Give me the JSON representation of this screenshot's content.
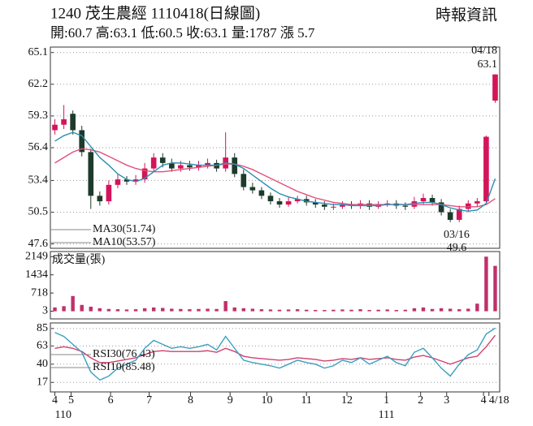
{
  "chart_data": [
    {
      "type": "candlestick",
      "title": "1240  茂生農經 1110418(日線圖)",
      "source": "時報資訊",
      "subtitle": "開:60.7 高:63.1 低:60.5 收:63.1 量:1787 漲 5.7",
      "x": [
        0,
        1,
        2,
        3,
        4,
        5,
        6,
        7,
        8,
        9,
        10,
        11,
        12,
        13,
        14,
        15,
        16,
        17,
        18,
        19,
        20,
        21,
        22,
        23,
        24,
        25,
        26,
        27,
        28,
        29,
        30,
        31,
        32,
        33,
        34,
        35,
        36,
        37,
        38,
        39,
        40,
        41,
        42,
        43,
        44,
        45,
        46,
        47,
        48,
        49
      ],
      "open": [
        58.0,
        58.5,
        59.5,
        58,
        56,
        52,
        51.5,
        53,
        53.5,
        53.3,
        53.5,
        54.5,
        55.5,
        55,
        54.5,
        54.8,
        54.6,
        54.8,
        55,
        54.5,
        55.5,
        54,
        52.8,
        52.5,
        52,
        51.5,
        51.2,
        51.5,
        51.7,
        51.4,
        51.2,
        51,
        51,
        51.2,
        51.1,
        51.3,
        51,
        51.2,
        51.3,
        51.1,
        51,
        51.5,
        51.8,
        51.4,
        50.5,
        49.8,
        50.8,
        51.3,
        51.5,
        60.7
      ],
      "high": [
        59,
        60.3,
        59.8,
        58.4,
        56.3,
        52.4,
        53.4,
        54,
        53.8,
        53.9,
        55,
        55.9,
        55.9,
        55.4,
        55.2,
        55.2,
        55.2,
        55.4,
        55.3,
        57.8,
        55.9,
        54.4,
        53.2,
        52.8,
        52.3,
        51.8,
        51.9,
        52,
        52,
        51.7,
        51.5,
        51.3,
        51.5,
        51.5,
        51.6,
        51.6,
        51.5,
        51.6,
        51.6,
        51.4,
        51.9,
        52.2,
        52.1,
        51.7,
        50.8,
        51.1,
        51.6,
        51.8,
        57.5,
        63.1
      ],
      "low": [
        57.6,
        58.1,
        57.6,
        55.6,
        50.8,
        51.1,
        51.2,
        52.7,
        53,
        53,
        53.2,
        54.2,
        54.6,
        54.2,
        54.2,
        54.3,
        54.3,
        54.5,
        54.2,
        54.2,
        53.7,
        52.5,
        52.2,
        51.7,
        51.2,
        50.9,
        51,
        51.3,
        51.1,
        50.9,
        50.7,
        50.7,
        50.8,
        50.8,
        50.8,
        50.7,
        50.8,
        51,
        50.8,
        50.7,
        50.8,
        51.2,
        51.1,
        50.2,
        49.6,
        49.6,
        50.5,
        51,
        51.3,
        60.5
      ],
      "close": [
        58.5,
        59,
        58,
        56,
        52,
        51.5,
        53,
        53.5,
        53.3,
        53.5,
        54.5,
        55.5,
        55,
        54.5,
        54.8,
        54.6,
        54.8,
        55,
        54.5,
        55.5,
        54,
        52.8,
        52.5,
        52,
        51.5,
        51.2,
        51.5,
        51.7,
        51.4,
        51.2,
        51,
        51,
        51.2,
        51.1,
        51.3,
        51,
        51.2,
        51.3,
        51.1,
        51,
        51.5,
        51.8,
        51.4,
        50.5,
        49.8,
        50.8,
        51.3,
        51.5,
        57.4,
        63.1
      ],
      "up_color": "#d4145a",
      "down_color": "#1d3b2a",
      "series": [
        {
          "name": "MA30(51.74)",
          "color": "#e0507a",
          "values": [
            55,
            55.5,
            56,
            56.3,
            56.2,
            56,
            55.6,
            55.2,
            54.8,
            54.5,
            54.3,
            54.2,
            54.2,
            54.3,
            54.4,
            54.5,
            54.6,
            54.7,
            54.8,
            54.9,
            54.9,
            54.7,
            54.4,
            54,
            53.6,
            53.2,
            52.8,
            52.4,
            52.1,
            51.8,
            51.6,
            51.4,
            51.3,
            51.2,
            51.2,
            51.2,
            51.2,
            51.2,
            51.2,
            51.2,
            51.2,
            51.2,
            51.2,
            51.2,
            51.1,
            51,
            51,
            51,
            51.2,
            51.74
          ]
        },
        {
          "name": "MA10(53.57)",
          "color": "#2a8fb0",
          "values": [
            57,
            57.5,
            57.8,
            57.5,
            56.5,
            55.5,
            54.8,
            54,
            53.5,
            53.3,
            53.6,
            54.2,
            54.8,
            55,
            55,
            54.9,
            54.8,
            54.8,
            54.8,
            55,
            54.9,
            54.5,
            53.9,
            53.3,
            52.7,
            52.2,
            51.9,
            51.7,
            51.5,
            51.4,
            51.3,
            51.2,
            51.2,
            51.1,
            51.1,
            51.1,
            51.1,
            51.2,
            51.2,
            51.2,
            51.3,
            51.4,
            51.4,
            51.2,
            50.9,
            50.7,
            50.6,
            50.7,
            51.3,
            53.57
          ]
        }
      ],
      "high_label": {
        "date": "04/18",
        "value": 63.1
      },
      "low_label": {
        "date": "03/16",
        "value": 49.6
      },
      "xlim": [
        -0.5,
        49.5
      ],
      "ylim": [
        47.2,
        65.6
      ],
      "yticks": [
        65.1,
        62.2,
        59.3,
        56.4,
        53.4,
        50.5,
        47.6
      ],
      "grid": true
    },
    {
      "type": "bar",
      "title": "成交量(張)",
      "x": [
        0,
        1,
        2,
        3,
        4,
        5,
        6,
        7,
        8,
        9,
        10,
        11,
        12,
        13,
        14,
        15,
        16,
        17,
        18,
        19,
        20,
        21,
        22,
        23,
        24,
        25,
        26,
        27,
        28,
        29,
        30,
        31,
        32,
        33,
        34,
        35,
        36,
        37,
        38,
        39,
        40,
        41,
        42,
        43,
        44,
        45,
        46,
        47,
        48,
        49
      ],
      "values": [
        150,
        200,
        600,
        250,
        180,
        120,
        90,
        80,
        70,
        80,
        120,
        150,
        130,
        100,
        90,
        80,
        90,
        100,
        90,
        400,
        150,
        120,
        100,
        80,
        70,
        60,
        70,
        80,
        60,
        50,
        50,
        60,
        70,
        60,
        80,
        50,
        60,
        70,
        50,
        60,
        120,
        150,
        90,
        120,
        100,
        80,
        100,
        300,
        2149,
        1787
      ],
      "color": "#c0306a",
      "xlim": [
        -0.5,
        49.5
      ],
      "ylim": [
        -300,
        2350
      ],
      "yticks": [
        2149,
        1434,
        718,
        3
      ],
      "grid": false
    },
    {
      "type": "line",
      "x": [
        0,
        1,
        2,
        3,
        4,
        5,
        6,
        7,
        8,
        9,
        10,
        11,
        12,
        13,
        14,
        15,
        16,
        17,
        18,
        19,
        20,
        21,
        22,
        23,
        24,
        25,
        26,
        27,
        28,
        29,
        30,
        31,
        32,
        33,
        34,
        35,
        36,
        37,
        38,
        39,
        40,
        41,
        42,
        43,
        44,
        45,
        46,
        47,
        48,
        49
      ],
      "series": [
        {
          "name": "RSI30(76.43)",
          "color": "#d04070",
          "values": [
            60,
            62,
            60,
            56,
            48,
            42,
            42,
            44,
            46,
            48,
            52,
            56,
            57,
            56,
            56,
            56,
            56,
            57,
            55,
            60,
            56,
            50,
            48,
            47,
            46,
            45,
            46,
            48,
            47,
            46,
            44,
            45,
            47,
            46,
            48,
            46,
            47,
            48,
            46,
            45,
            49,
            51,
            48,
            44,
            40,
            44,
            48,
            50,
            62,
            76.43
          ]
        },
        {
          "name": "RSI10(85.48)",
          "color": "#3aa0c0",
          "values": [
            80,
            75,
            65,
            55,
            30,
            20,
            25,
            35,
            40,
            45,
            60,
            70,
            65,
            60,
            62,
            60,
            62,
            65,
            58,
            75,
            60,
            45,
            42,
            40,
            38,
            35,
            40,
            45,
            42,
            40,
            35,
            38,
            45,
            42,
            48,
            40,
            45,
            50,
            42,
            38,
            55,
            60,
            48,
            35,
            25,
            40,
            52,
            58,
            78,
            85.48
          ]
        }
      ],
      "xlim": [
        -0.5,
        49.5
      ],
      "ylim": [
        5,
        92
      ],
      "yticks": [
        85,
        63,
        40,
        17
      ],
      "grid": true,
      "xticks": [
        {
          "value": 0,
          "label": "4"
        },
        {
          "value": 1.8,
          "label": "5"
        },
        {
          "value": 6.2,
          "label": "6"
        },
        {
          "value": 10.5,
          "label": "7"
        },
        {
          "value": 15.1,
          "label": "8"
        },
        {
          "value": 19.5,
          "label": "9"
        },
        {
          "value": 23.6,
          "label": "10"
        },
        {
          "value": 28,
          "label": "11"
        },
        {
          "value": 32.5,
          "label": "12"
        },
        {
          "value": 36.9,
          "label": "1"
        },
        {
          "value": 40.7,
          "label": "2"
        },
        {
          "value": 43.6,
          "label": "3"
        },
        {
          "value": 47.7,
          "label": "4"
        },
        {
          "value": 48.3,
          "label": "4/18"
        }
      ],
      "x_year_labels": [
        {
          "value": 0,
          "label": "110"
        },
        {
          "value": 36.9,
          "label": "111"
        }
      ]
    }
  ]
}
